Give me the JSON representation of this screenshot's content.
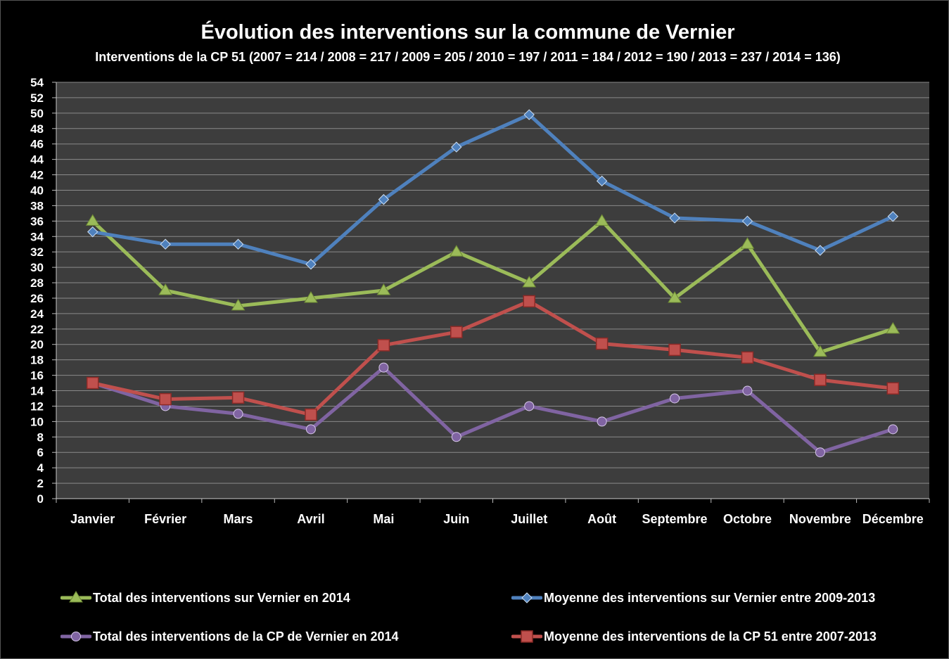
{
  "chart_data": {
    "type": "line",
    "title": "Évolution des interventions sur la commune de Vernier",
    "subtitle": "Interventions de la CP 51 (2007 = 214 /  2008 = 217 / 2009 = 205 / 2010 = 197 / 2011 = 184 / 2012 = 190 / 2013 = 237 / 2014 = 136)",
    "categories": [
      "Janvier",
      "Février",
      "Mars",
      "Avril",
      "Mai",
      "Juin",
      "Juillet",
      "Août",
      "Septembre",
      "Octobre",
      "Novembre",
      "Décembre"
    ],
    "ylim": [
      0,
      54
    ],
    "yticks": [
      0,
      2,
      4,
      6,
      8,
      10,
      12,
      14,
      16,
      18,
      20,
      22,
      24,
      26,
      28,
      30,
      32,
      34,
      36,
      38,
      40,
      42,
      44,
      46,
      48,
      50,
      52,
      54
    ],
    "grid": true,
    "legend_position": "bottom",
    "series": [
      {
        "name": "Moyenne des interventions sur Vernier entre 2009-2013",
        "color": "#4f81bd",
        "marker": "diamond",
        "values": [
          34.6,
          33.0,
          33.0,
          30.4,
          38.8,
          45.6,
          49.8,
          41.2,
          36.4,
          36.0,
          32.2,
          36.6
        ]
      },
      {
        "name": "Total des interventions sur Vernier en 2014",
        "color": "#9bbb59",
        "marker": "triangle",
        "values": [
          36,
          27,
          25,
          26,
          27,
          32,
          28,
          36,
          26,
          33,
          19,
          22
        ]
      },
      {
        "name": "Moyenne des interventions de la CP 51 entre 2007-2013",
        "color": "#c0504d",
        "marker": "square",
        "values": [
          15.0,
          12.9,
          13.1,
          10.9,
          19.9,
          21.6,
          25.6,
          20.1,
          19.3,
          18.3,
          15.4,
          14.3
        ]
      },
      {
        "name": "Total des interventions de la CP de Vernier en 2014",
        "color": "#8064a2",
        "marker": "circle",
        "values": [
          15,
          12,
          11,
          9,
          17,
          8,
          12,
          10,
          13,
          14,
          6,
          9
        ]
      }
    ]
  }
}
